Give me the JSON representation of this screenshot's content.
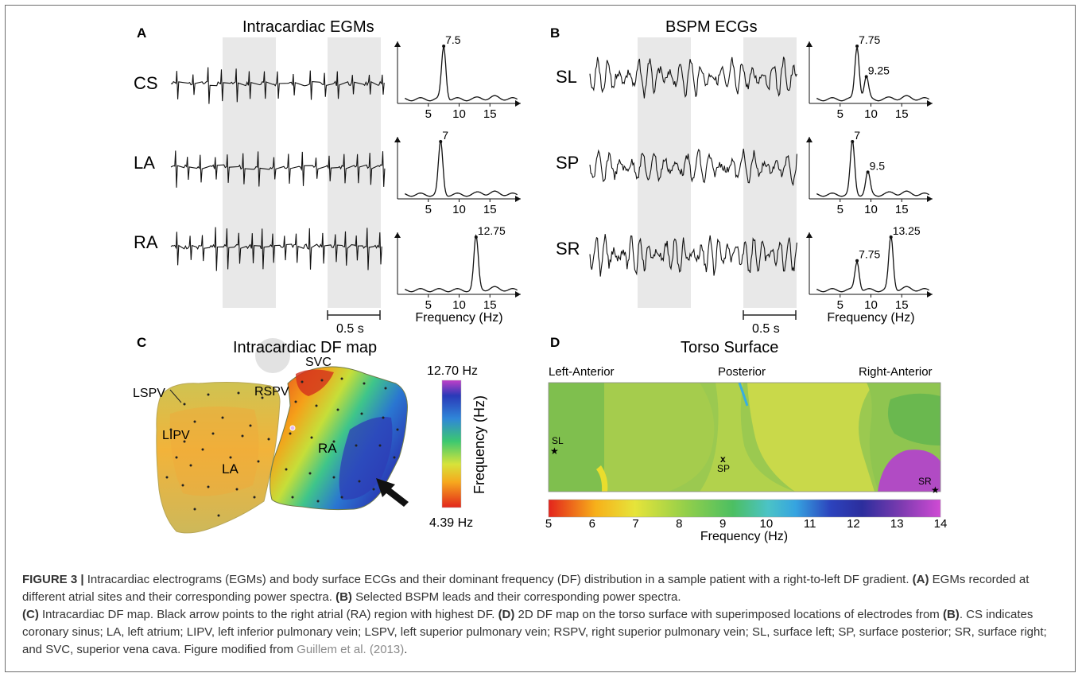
{
  "panels": {
    "A": {
      "letter": "A",
      "title": "Intracardiac EGMs",
      "leads": [
        "CS",
        "LA",
        "RA"
      ],
      "scalebar": "0.5 s",
      "spectra": [
        {
          "lead": "CS",
          "peaks": [
            {
              "f": 7.5,
              "label": "7.5"
            }
          ]
        },
        {
          "lead": "LA",
          "peaks": [
            {
              "f": 7.0,
              "label": "7"
            }
          ]
        },
        {
          "lead": "RA",
          "peaks": [
            {
              "f": 12.75,
              "label": "12.75"
            }
          ]
        }
      ],
      "spectrum_ticks": [
        "5",
        "10",
        "15"
      ],
      "spectrum_xlabel": "Frequency (Hz)"
    },
    "B": {
      "letter": "B",
      "title": "BSPM ECGs",
      "leads": [
        "SL",
        "SP",
        "SR"
      ],
      "scalebar": "0.5 s",
      "spectra": [
        {
          "lead": "SL",
          "peaks": [
            {
              "f": 7.75,
              "label": "7.75"
            },
            {
              "f": 9.25,
              "label": "9.25"
            }
          ]
        },
        {
          "lead": "SP",
          "peaks": [
            {
              "f": 7.0,
              "label": "7"
            },
            {
              "f": 9.5,
              "label": "9.5"
            }
          ]
        },
        {
          "lead": "SR",
          "peaks": [
            {
              "f": 7.75,
              "label": "7.75"
            },
            {
              "f": 13.25,
              "label": "13.25"
            }
          ]
        }
      ],
      "spectrum_ticks": [
        "5",
        "10",
        "15"
      ],
      "spectrum_xlabel": "Frequency (Hz)"
    },
    "C": {
      "letter": "C",
      "title": "Intracardiac DF map",
      "labels": {
        "lspv": "LSPV",
        "rspv": "RSPV",
        "svc": "SVC",
        "lipv": "LIPV",
        "la": "LA",
        "ra": "RA"
      },
      "colorbar": {
        "max": "12.70 Hz",
        "min": "4.39 Hz",
        "label": "Frequency (Hz)"
      }
    },
    "D": {
      "letter": "D",
      "title": "Torso Surface",
      "regions": [
        "Left-Anterior",
        "Posterior",
        "Right-Anterior"
      ],
      "electrodes": [
        "SL",
        "SP",
        "SR"
      ],
      "colorbar_ticks": [
        "5",
        "6",
        "7",
        "8",
        "9",
        "10",
        "11",
        "12",
        "13",
        "14"
      ],
      "colorbar_label": "Frequency (Hz)"
    }
  },
  "caption": {
    "figure": "FIGURE 3 |",
    "s1": " Intracardiac electrograms (EGMs) and body surface ECGs and their dominant frequency (DF) distribution in a sample patient with a right-to-left DF gradient. ",
    "a_tag": "(A)",
    "s2": " EGMs recorded at different atrial sites and their corresponding power spectra. ",
    "b_tag": "(B)",
    "s3": " Selected BSPM leads and their corresponding power spectra. ",
    "c_tag": "(C)",
    "s4": " Intracardiac DF map. Black arrow points to the right atrial (RA) region with highest DF. ",
    "d_tag": "(D)",
    "s5": " 2D DF map on the torso surface with superimposed locations of electrodes from ",
    "b_tag2": "(B)",
    "s6": ". CS indicates coronary sinus; LA, left atrium; LIPV, left inferior pulmonary vein; LSPV, left superior pulmonary vein; RSPV, right superior pulmonary vein; SL, surface left; SP, surface posterior; SR, surface right; and SVC, superior vena cava. Figure modified from ",
    "ref": "Guillem et al. (2013)",
    "end": "."
  }
}
